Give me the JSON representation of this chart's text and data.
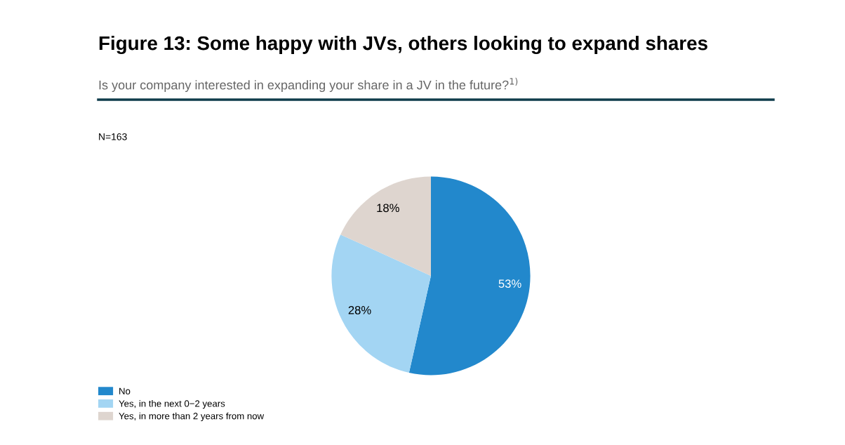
{
  "chart_data": {
    "type": "pie",
    "title": "Figure 13: Some happy with JVs, others looking to expand shares",
    "subtitle": "Is your company interested in expanding your share in a JV in the future?$^{1)}$",
    "annotations": [
      "N=163"
    ],
    "categories": [
      "No",
      "Yes, in the next 0−2 years",
      "Yes, in more than 2 years from now"
    ],
    "values": [
      53,
      28,
      18
    ],
    "value_labels": [
      "53%",
      "28%",
      "18%"
    ],
    "colors": [
      "#2288cc",
      "#a3d5f3",
      "#ded5cf"
    ],
    "legend": "bottom left"
  }
}
